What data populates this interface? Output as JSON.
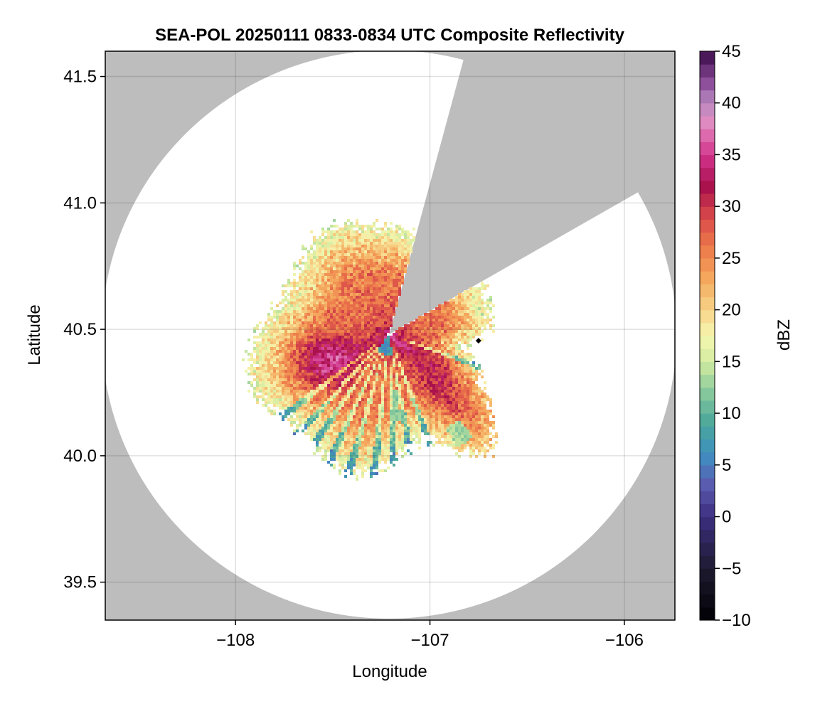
{
  "chart_data": {
    "type": "heatmap",
    "title": "SEA-POL 20250111 0833-0834 UTC Composite Reflectivity",
    "xlabel": "Longitude",
    "ylabel": "Latitude",
    "xlim": [
      -108.67,
      -105.74
    ],
    "ylim": [
      39.35,
      41.6
    ],
    "xticks": [
      -108,
      -107,
      -106
    ],
    "xtick_labels": [
      "−108",
      "−107",
      "−106"
    ],
    "yticks": [
      39.5,
      40.0,
      40.5,
      41.0,
      41.5
    ],
    "ytick_labels": [
      "39.5",
      "40.0",
      "40.5",
      "41.0",
      "41.5"
    ],
    "grid": true,
    "background_color": "#bdbdbd",
    "no_echo_color": "#ffffff",
    "radar_center": {
      "lon": -107.21,
      "lat": 40.48
    },
    "radar_range_km": 125,
    "blocked_sectors_deg": [
      [
        15,
        60
      ]
    ],
    "marker": {
      "lon": -106.75,
      "lat": 40.455
    },
    "colorbar": {
      "label": "dBZ",
      "vmin": -10,
      "vmax": 45,
      "step": 1.25,
      "ticks": [
        -10,
        -5,
        0,
        5,
        10,
        15,
        20,
        25,
        30,
        35,
        40,
        45
      ],
      "tick_labels": [
        "−10",
        "−5",
        "0",
        "5",
        "10",
        "15",
        "20",
        "25",
        "30",
        "35",
        "40",
        "45"
      ],
      "colormap": "spectral-reversed",
      "stops": [
        [
          -10,
          "#000004"
        ],
        [
          -5,
          "#1e1a30"
        ],
        [
          0,
          "#3d2e80"
        ],
        [
          3,
          "#5b5aaf"
        ],
        [
          6,
          "#3f8fc0"
        ],
        [
          9,
          "#4aa79a"
        ],
        [
          12,
          "#86c89d"
        ],
        [
          15,
          "#d2eba0"
        ],
        [
          17.5,
          "#f6f7b0"
        ],
        [
          20,
          "#f7d388"
        ],
        [
          23,
          "#f4a95e"
        ],
        [
          26,
          "#ed7a4a"
        ],
        [
          29,
          "#d8494a"
        ],
        [
          32,
          "#a8104d"
        ],
        [
          35,
          "#d3358c"
        ],
        [
          38,
          "#e28ac0"
        ],
        [
          40,
          "#b98ac0"
        ],
        [
          42,
          "#8c4c98"
        ],
        [
          45,
          "#3a0a4a"
        ]
      ]
    }
  }
}
